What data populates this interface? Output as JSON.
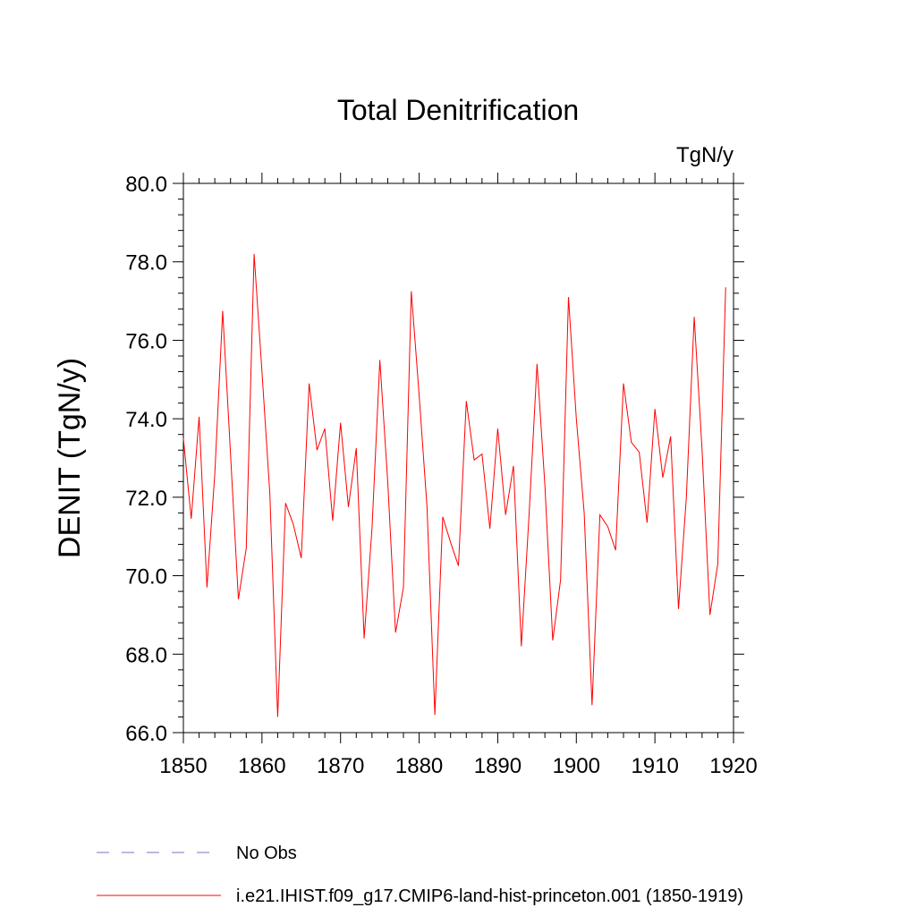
{
  "chart_data": {
    "type": "line",
    "title": "Total Denitrification",
    "units": "TgN/y",
    "ylabel": "DENIT  (TgN/y)",
    "xlabel": "",
    "xlim": [
      1850,
      1920
    ],
    "ylim": [
      66.0,
      80.0
    ],
    "x_ticks": [
      1850,
      1860,
      1870,
      1880,
      1890,
      1900,
      1910,
      1920
    ],
    "y_ticks": [
      "66.0",
      "68.0",
      "70.0",
      "72.0",
      "74.0",
      "76.0",
      "78.0",
      "80.0"
    ],
    "grid": false,
    "legend_placement": "bottom",
    "series": [
      {
        "name": "No Obs",
        "color": "#7b6fc4",
        "style": "dashed",
        "values": []
      },
      {
        "name": "i.e21.IHIST.f09_g17.CMIP6-land-hist-princeton.001 (1850-1919)",
        "color": "#ff0000",
        "style": "solid",
        "x": [
          1850,
          1851,
          1852,
          1853,
          1854,
          1855,
          1856,
          1857,
          1858,
          1859,
          1860,
          1861,
          1862,
          1863,
          1864,
          1865,
          1866,
          1867,
          1868,
          1869,
          1870,
          1871,
          1872,
          1873,
          1874,
          1875,
          1876,
          1877,
          1878,
          1879,
          1880,
          1881,
          1882,
          1883,
          1884,
          1885,
          1886,
          1887,
          1888,
          1889,
          1890,
          1891,
          1892,
          1893,
          1894,
          1895,
          1896,
          1897,
          1898,
          1899,
          1900,
          1901,
          1902,
          1903,
          1904,
          1905,
          1906,
          1907,
          1908,
          1909,
          1910,
          1911,
          1912,
          1913,
          1914,
          1915,
          1916,
          1917,
          1918,
          1919
        ],
        "values": [
          73.5,
          71.45,
          74.05,
          69.7,
          72.6,
          76.75,
          73.1,
          69.4,
          70.7,
          78.2,
          75.2,
          72.1,
          66.4,
          71.85,
          71.3,
          70.45,
          74.9,
          73.2,
          73.75,
          71.4,
          73.9,
          71.75,
          73.25,
          68.4,
          71.2,
          75.5,
          72.4,
          68.55,
          69.7,
          77.25,
          74.6,
          71.75,
          66.45,
          71.5,
          70.85,
          70.25,
          74.45,
          72.95,
          73.1,
          71.2,
          73.75,
          71.55,
          72.8,
          68.2,
          71.6,
          75.4,
          72.3,
          68.35,
          69.9,
          77.1,
          74.0,
          71.6,
          66.7,
          71.55,
          71.25,
          70.65,
          74.9,
          73.4,
          73.15,
          71.35,
          74.25,
          72.5,
          73.55,
          69.15,
          72.0,
          76.6,
          73.2,
          69.0,
          70.3,
          77.35
        ]
      }
    ]
  }
}
